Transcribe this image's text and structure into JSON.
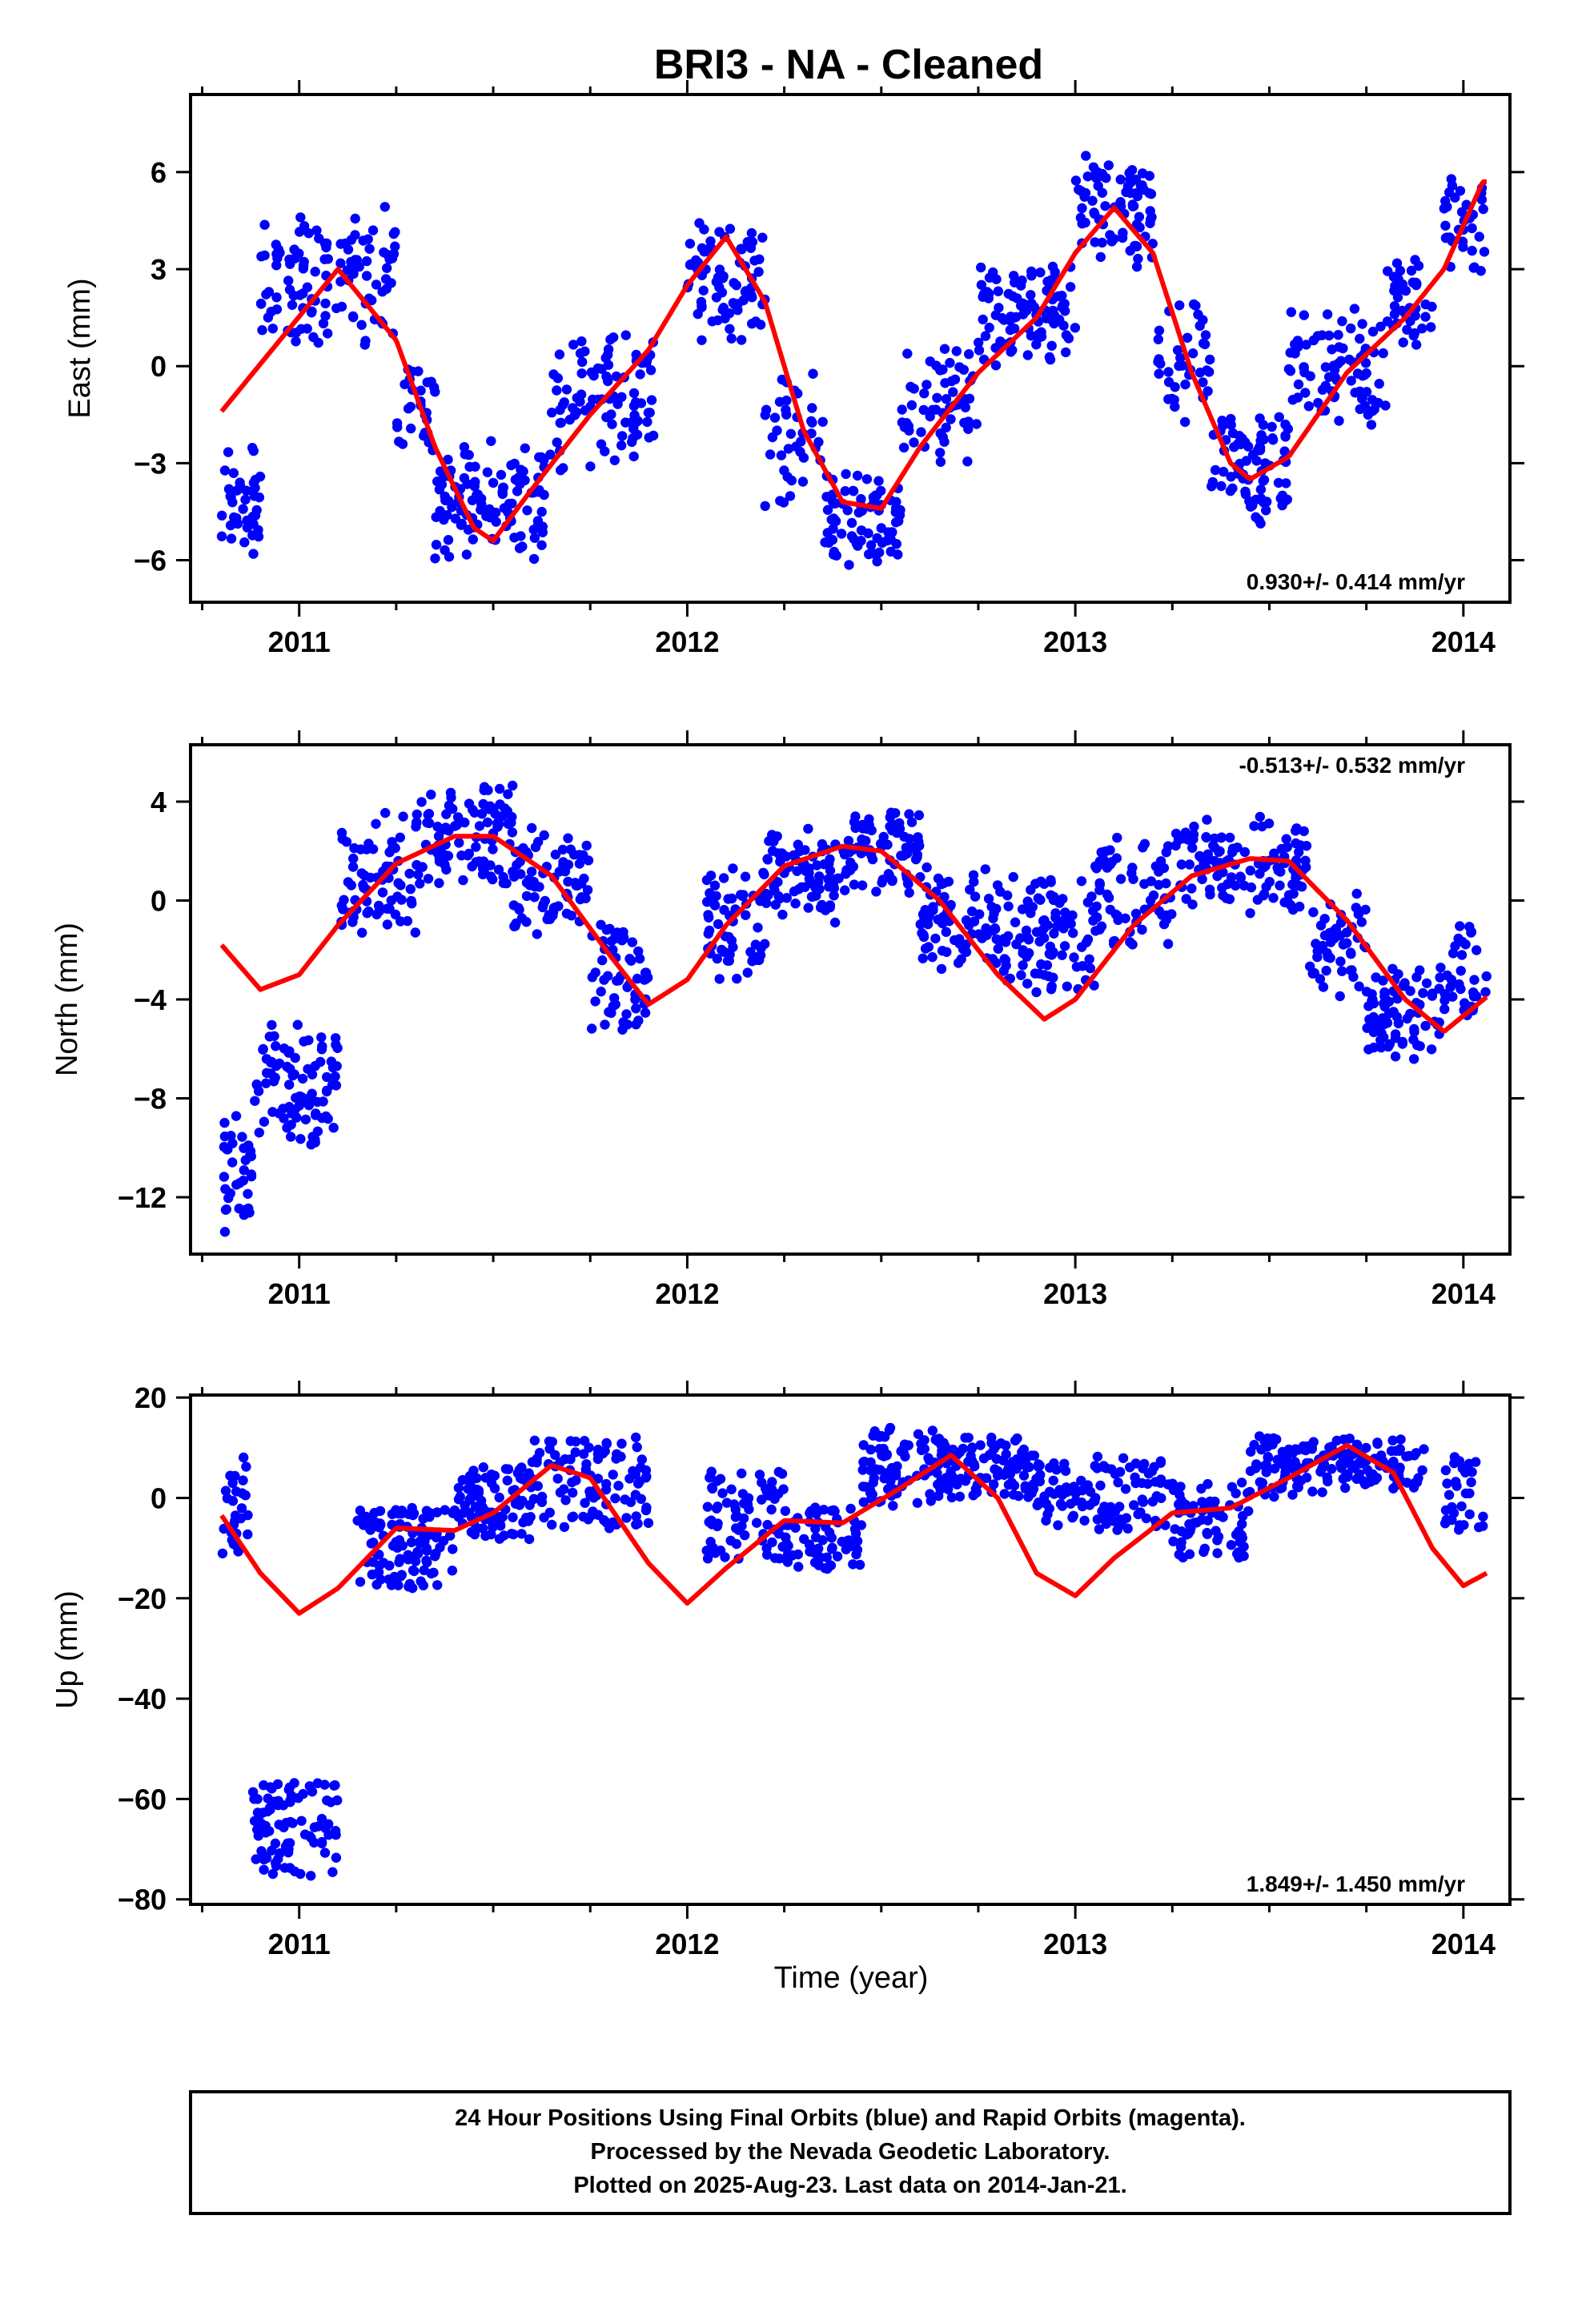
{
  "title": "BRI3  - NA - Cleaned",
  "xlabel": "Time (year)",
  "colors": {
    "points": "#0000ff",
    "fit": "#ff0000",
    "frame": "#000000"
  },
  "x_ticks": [
    2011,
    2012,
    2013,
    2014
  ],
  "x_range": [
    2010.72,
    2014.12
  ],
  "footer": {
    "line1": "24 Hour Positions Using Final Orbits (blue) and Rapid Orbits (magenta).",
    "line2": "Processed by the Nevada Geodetic Laboratory.",
    "line3": "Plotted on 2025-Aug-23. Last data on 2014-Jan-21."
  },
  "chart_data": [
    {
      "type": "scatter",
      "key": "east",
      "ylabel": "East (mm)",
      "rate_text": "0.930+/- 0.414 mm/yr",
      "ylim": [
        -7.3,
        8.4
      ],
      "yticks": [
        6,
        3,
        0,
        -3,
        -6
      ],
      "x_start": 2010.8,
      "x_end": 2014.06,
      "fit": [
        [
          2010.8,
          -1.4
        ],
        [
          2010.95,
          0.8
        ],
        [
          2011.1,
          3.0
        ],
        [
          2011.25,
          0.8
        ],
        [
          2011.35,
          -2.5
        ],
        [
          2011.45,
          -5.0
        ],
        [
          2011.5,
          -5.4
        ],
        [
          2011.6,
          -3.8
        ],
        [
          2011.75,
          -1.5
        ],
        [
          2011.9,
          0.5
        ],
        [
          2012.0,
          2.5
        ],
        [
          2012.1,
          4.0
        ],
        [
          2012.2,
          2.0
        ],
        [
          2012.3,
          -2.0
        ],
        [
          2012.4,
          -4.2
        ],
        [
          2012.5,
          -4.4
        ],
        [
          2012.6,
          -2.5
        ],
        [
          2012.75,
          -0.2
        ],
        [
          2012.9,
          1.5
        ],
        [
          2013.0,
          3.5
        ],
        [
          2013.1,
          4.9
        ],
        [
          2013.2,
          3.5
        ],
        [
          2013.3,
          -0.2
        ],
        [
          2013.4,
          -3.0
        ],
        [
          2013.45,
          -3.5
        ],
        [
          2013.55,
          -2.8
        ],
        [
          2013.7,
          -0.2
        ],
        [
          2013.85,
          1.5
        ],
        [
          2013.95,
          3.0
        ],
        [
          2014.05,
          5.7
        ]
      ],
      "clusters": [
        [
          2010.8,
          2010.9,
          -6.0,
          -2.5,
          1.2,
          40
        ],
        [
          2010.9,
          2011.25,
          1.0,
          4.5,
          1.2,
          120
        ],
        [
          2011.25,
          2011.35,
          -2.5,
          0.0,
          1.0,
          30
        ],
        [
          2011.35,
          2011.65,
          -5.5,
          -2.8,
          1.1,
          110
        ],
        [
          2011.65,
          2011.92,
          -3.0,
          0.8,
          1.0,
          90
        ],
        [
          2012.0,
          2012.2,
          1.2,
          4.2,
          1.2,
          80
        ],
        [
          2012.2,
          2012.35,
          -4.0,
          -0.5,
          1.2,
          40
        ],
        [
          2012.35,
          2012.55,
          -5.8,
          -3.6,
          1.0,
          80
        ],
        [
          2012.55,
          2012.75,
          -2.5,
          0.2,
          1.2,
          60
        ],
        [
          2012.75,
          2013.0,
          0.5,
          2.8,
          1.1,
          100
        ],
        [
          2013.0,
          2013.2,
          3.5,
          6.0,
          1.2,
          80
        ],
        [
          2013.2,
          2013.35,
          -1.5,
          1.5,
          1.2,
          40
        ],
        [
          2013.35,
          2013.55,
          -4.5,
          -1.8,
          1.0,
          80
        ],
        [
          2013.55,
          2013.8,
          -1.5,
          1.5,
          1.2,
          80
        ],
        [
          2013.8,
          2013.93,
          1.0,
          3.0,
          1.2,
          40
        ],
        [
          2013.95,
          2014.06,
          3.0,
          5.5,
          1.1,
          35
        ]
      ]
    },
    {
      "type": "scatter",
      "key": "north",
      "ylabel": "North (mm)",
      "rate_text": "-0.513+/- 0.532 mm/yr",
      "ylim": [
        -14.3,
        6.3
      ],
      "yticks": [
        4,
        0,
        -4,
        -8,
        -12
      ],
      "x_start": 2010.8,
      "x_end": 2014.06,
      "fit": [
        [
          2010.8,
          -1.8
        ],
        [
          2010.9,
          -3.6
        ],
        [
          2011.0,
          -3.0
        ],
        [
          2011.1,
          -1.0
        ],
        [
          2011.25,
          1.5
        ],
        [
          2011.4,
          2.6
        ],
        [
          2011.5,
          2.6
        ],
        [
          2011.65,
          1.0
        ],
        [
          2011.8,
          -2.2
        ],
        [
          2011.9,
          -4.2
        ],
        [
          2012.0,
          -3.2
        ],
        [
          2012.1,
          -1.0
        ],
        [
          2012.25,
          1.4
        ],
        [
          2012.4,
          2.2
        ],
        [
          2012.5,
          2.0
        ],
        [
          2012.65,
          0.0
        ],
        [
          2012.8,
          -3.0
        ],
        [
          2012.92,
          -4.8
        ],
        [
          2013.0,
          -4.0
        ],
        [
          2013.15,
          -1.0
        ],
        [
          2013.3,
          1.0
        ],
        [
          2013.45,
          1.7
        ],
        [
          2013.55,
          1.6
        ],
        [
          2013.7,
          -0.8
        ],
        [
          2013.85,
          -4.0
        ],
        [
          2013.95,
          -5.3
        ],
        [
          2014.06,
          -3.9
        ]
      ],
      "clusters": [
        [
          2010.8,
          2010.88,
          -13.0,
          -9.0,
          1.4,
          35
        ],
        [
          2010.88,
          2011.1,
          -9.5,
          -5.5,
          1.3,
          90
        ],
        [
          2011.1,
          2011.3,
          -1.0,
          3.0,
          1.4,
          70
        ],
        [
          2011.3,
          2011.55,
          1.0,
          4.5,
          1.2,
          100
        ],
        [
          2011.55,
          2011.75,
          -1.0,
          2.5,
          1.3,
          80
        ],
        [
          2011.75,
          2011.9,
          -5.0,
          -1.0,
          1.3,
          60
        ],
        [
          2012.05,
          2012.2,
          -3.0,
          1.0,
          1.4,
          60
        ],
        [
          2012.2,
          2012.4,
          -0.5,
          2.5,
          1.2,
          80
        ],
        [
          2012.4,
          2012.6,
          0.5,
          3.5,
          1.2,
          80
        ],
        [
          2012.6,
          2012.8,
          -2.5,
          1.0,
          1.2,
          80
        ],
        [
          2012.8,
          2013.05,
          -3.5,
          0.5,
          1.3,
          100
        ],
        [
          2013.05,
          2013.25,
          -1.5,
          2.0,
          1.3,
          70
        ],
        [
          2013.25,
          2013.6,
          0.0,
          3.0,
          1.1,
          120
        ],
        [
          2013.6,
          2013.75,
          -3.5,
          0.0,
          1.3,
          50
        ],
        [
          2013.75,
          2013.95,
          -6.0,
          -3.0,
          1.1,
          80
        ],
        [
          2013.95,
          2014.06,
          -4.5,
          -1.0,
          1.3,
          35
        ]
      ]
    },
    {
      "type": "scatter",
      "key": "up",
      "ylabel": "Up (mm)",
      "rate_text": "1.849+/- 1.450 mm/yr",
      "ylim": [
        -81,
        20.5
      ],
      "yticks": [
        20,
        0,
        -20,
        -40,
        -60,
        -80
      ],
      "x_start": 2010.8,
      "x_end": 2014.06,
      "fit": [
        [
          2010.8,
          -3.5
        ],
        [
          2010.9,
          -15.0
        ],
        [
          2011.0,
          -23.0
        ],
        [
          2011.1,
          -18.0
        ],
        [
          2011.25,
          -6.0
        ],
        [
          2011.4,
          -6.5
        ],
        [
          2011.5,
          -3.0
        ],
        [
          2011.65,
          6.5
        ],
        [
          2011.75,
          4.0
        ],
        [
          2011.9,
          -13.0
        ],
        [
          2012.0,
          -21.0
        ],
        [
          2012.1,
          -14.0
        ],
        [
          2012.25,
          -4.5
        ],
        [
          2012.4,
          -5.0
        ],
        [
          2012.55,
          2.0
        ],
        [
          2012.68,
          8.5
        ],
        [
          2012.8,
          0.0
        ],
        [
          2012.9,
          -15.0
        ],
        [
          2013.0,
          -19.5
        ],
        [
          2013.1,
          -12.0
        ],
        [
          2013.25,
          -3.0
        ],
        [
          2013.4,
          -2.0
        ],
        [
          2013.55,
          4.0
        ],
        [
          2013.7,
          10.5
        ],
        [
          2013.82,
          5.0
        ],
        [
          2013.92,
          -10.0
        ],
        [
          2014.0,
          -17.5
        ],
        [
          2014.06,
          -15.0
        ]
      ],
      "clusters": [
        [
          2010.8,
          2010.87,
          -12.0,
          8.0,
          1.4,
          30
        ],
        [
          2010.88,
          2011.1,
          -75.0,
          -56.0,
          1.3,
          90
        ],
        [
          2011.15,
          2011.4,
          -18.0,
          -2.0,
          1.2,
          110
        ],
        [
          2011.4,
          2011.6,
          -8.0,
          6.0,
          1.2,
          90
        ],
        [
          2011.6,
          2011.9,
          -6.0,
          12.0,
          1.2,
          100
        ],
        [
          2012.05,
          2012.25,
          -12.0,
          5.0,
          1.2,
          70
        ],
        [
          2012.25,
          2012.45,
          -14.0,
          -2.0,
          1.2,
          70
        ],
        [
          2012.45,
          2012.65,
          -2.0,
          14.0,
          1.2,
          80
        ],
        [
          2012.65,
          2012.9,
          0.0,
          12.0,
          1.2,
          100
        ],
        [
          2012.9,
          2013.25,
          -6.0,
          8.0,
          1.2,
          110
        ],
        [
          2013.25,
          2013.45,
          -12.0,
          3.0,
          1.2,
          70
        ],
        [
          2013.45,
          2013.65,
          0.0,
          12.0,
          1.2,
          80
        ],
        [
          2013.65,
          2013.9,
          2.0,
          12.0,
          1.2,
          80
        ],
        [
          2013.95,
          2014.06,
          -6.0,
          8.0,
          1.3,
          30
        ]
      ]
    }
  ]
}
